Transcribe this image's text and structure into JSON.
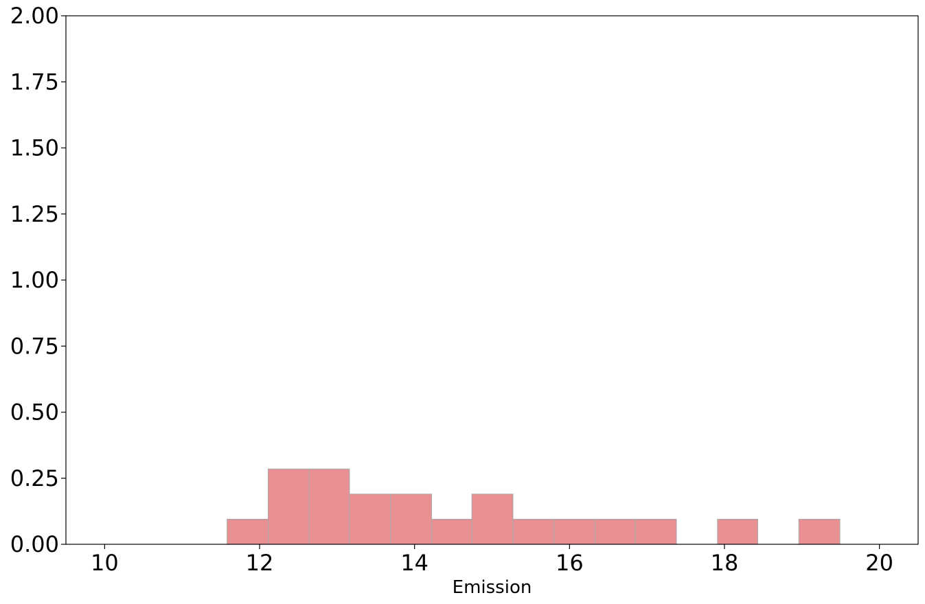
{
  "chart_data": {
    "type": "bar",
    "title": "",
    "xlabel": "Emission",
    "ylabel": "",
    "xlim": [
      9.5,
      20.5
    ],
    "ylim": [
      0,
      2.0
    ],
    "xticks": [
      10,
      12,
      14,
      16,
      18,
      20
    ],
    "yticks": [
      0,
      0.25,
      0.5,
      0.75,
      1.0,
      1.25,
      1.5,
      1.75,
      2.0
    ],
    "xtick_labels": [
      "10",
      "12",
      "14",
      "16",
      "18",
      "20"
    ],
    "ytick_labels": [
      "0.00",
      "0.25",
      "0.50",
      "0.75",
      "1.00",
      "1.25",
      "1.50",
      "1.75",
      "2.00"
    ],
    "grid": false,
    "bar_color": "#e89091",
    "edge_color": "#a8a8a8",
    "bins": [
      {
        "x0": 11.58,
        "x1": 12.11,
        "value": 0.095
      },
      {
        "x0": 12.11,
        "x1": 12.64,
        "value": 0.285
      },
      {
        "x0": 12.64,
        "x1": 13.16,
        "value": 0.285
      },
      {
        "x0": 13.16,
        "x1": 13.69,
        "value": 0.19
      },
      {
        "x0": 13.69,
        "x1": 14.22,
        "value": 0.19
      },
      {
        "x0": 14.22,
        "x1": 14.74,
        "value": 0.095
      },
      {
        "x0": 14.74,
        "x1": 15.27,
        "value": 0.19
      },
      {
        "x0": 15.27,
        "x1": 15.8,
        "value": 0.095
      },
      {
        "x0": 15.8,
        "x1": 16.33,
        "value": 0.095
      },
      {
        "x0": 16.33,
        "x1": 16.85,
        "value": 0.095
      },
      {
        "x0": 16.85,
        "x1": 17.38,
        "value": 0.095
      },
      {
        "x0": 17.91,
        "x1": 18.43,
        "value": 0.095
      },
      {
        "x0": 18.96,
        "x1": 19.49,
        "value": 0.095
      }
    ]
  }
}
